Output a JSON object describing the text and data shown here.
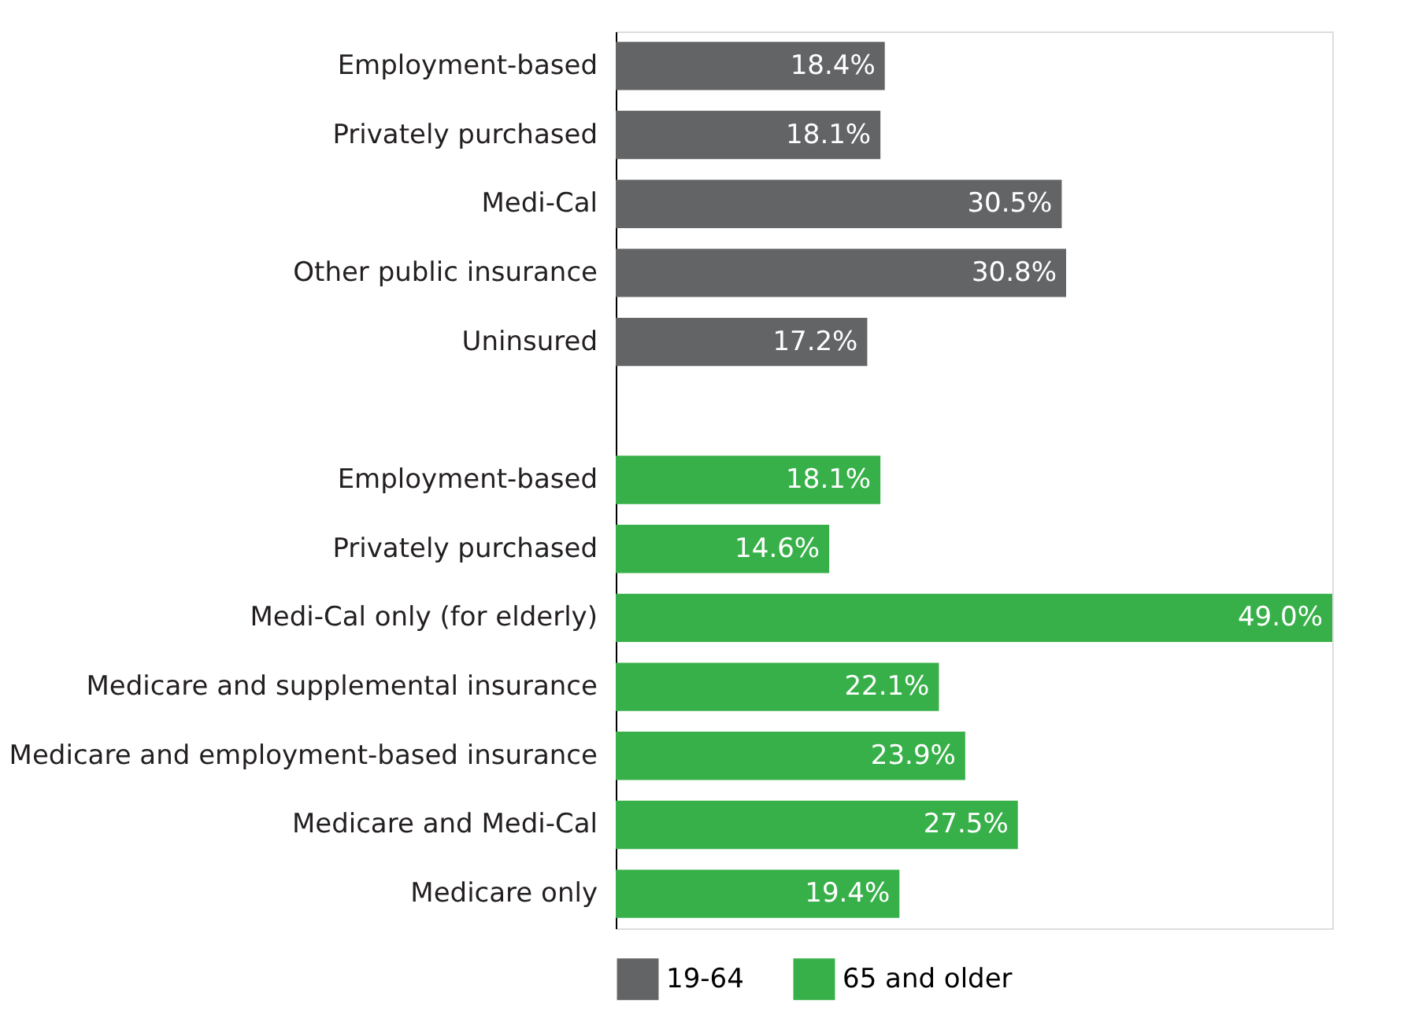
{
  "chart_data": {
    "type": "bar",
    "orientation": "horizontal",
    "legend": "bottom",
    "categories": [
      "Employment-based",
      "Privately purchased",
      "Medi-Cal",
      "Other public insurance",
      "Uninsured",
      null,
      "Employment-based",
      "Privately purchased",
      "Medi-Cal only (for elderly)",
      "Medicare and supplemental insurance",
      "Medicare and employment-based insurance",
      "Medicare and Medi-Cal",
      "Medicare only"
    ],
    "series": [
      {
        "name": "19-64",
        "color": "#636466",
        "values": [
          18.4,
          18.1,
          30.5,
          30.8,
          17.2,
          null,
          null,
          null,
          null,
          null,
          null,
          null,
          null
        ],
        "value_labels": [
          "18.4%",
          "18.1%",
          "30.5%",
          "30.8%",
          "17.2%",
          null,
          null,
          null,
          null,
          null,
          null,
          null,
          null
        ]
      },
      {
        "name": "65 and older",
        "color": "#38b04a",
        "values": [
          null,
          null,
          null,
          null,
          null,
          null,
          18.1,
          14.6,
          49.0,
          22.1,
          23.9,
          27.5,
          19.4
        ],
        "value_labels": [
          null,
          null,
          null,
          null,
          null,
          null,
          "18.1%",
          "14.6%",
          "49.0%",
          "22.1%",
          "23.9%",
          "27.5%",
          "19.4%"
        ]
      }
    ]
  }
}
